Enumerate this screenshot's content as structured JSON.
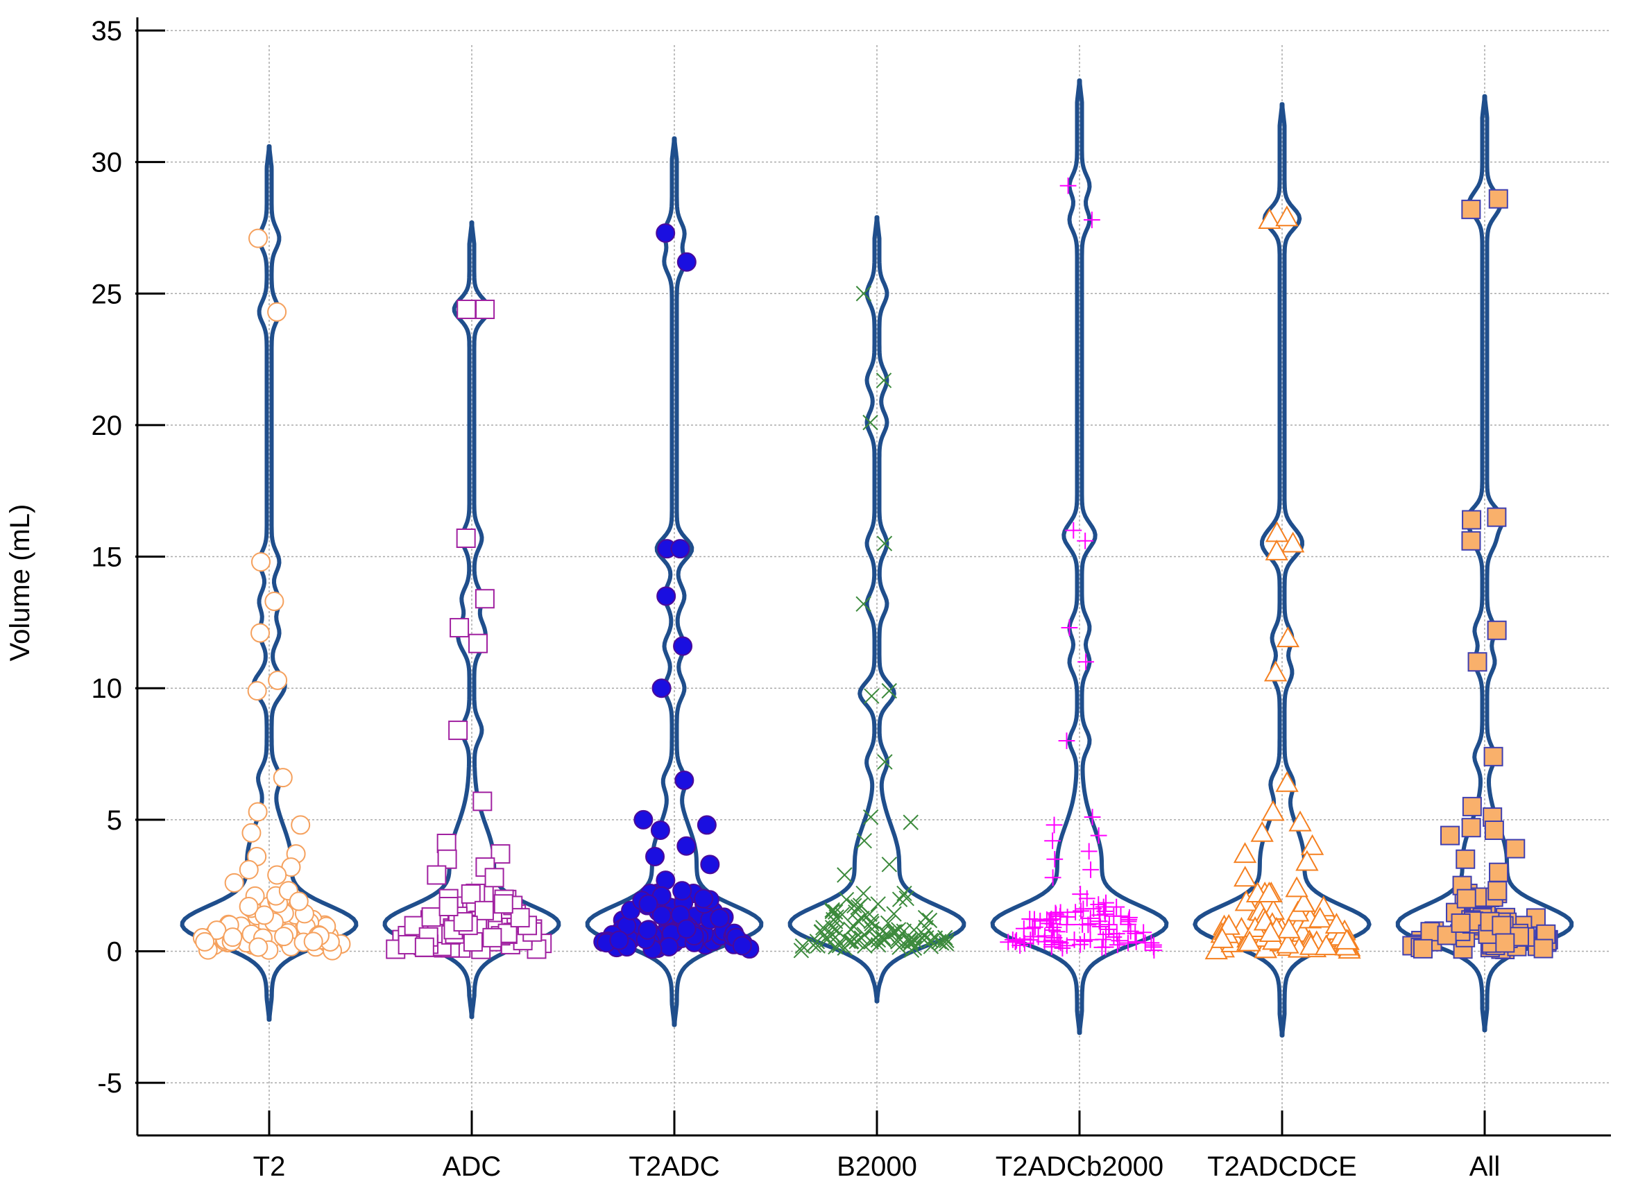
{
  "chart_data": {
    "type": "violin",
    "title": "",
    "xlabel": "",
    "ylabel": "Volume (mL)",
    "ylim": [
      -7,
      35.5
    ],
    "yticks": [
      -5,
      0,
      5,
      10,
      15,
      20,
      25,
      30,
      35
    ],
    "grid": true,
    "colors": {
      "violin": "#1F4E8C",
      "grid": "#AAAAAA",
      "axis": "#000000"
    },
    "categories": [
      "T2",
      "ADC",
      "T2ADC",
      "B2000",
      "T2ADCb2000",
      "T2ADCDCE",
      "All"
    ],
    "series": [
      {
        "name": "T2",
        "marker": "circle",
        "fill": "#FFFFFF",
        "stroke": "#F5A15E",
        "range": [
          -2.6,
          30.6
        ],
        "outliers": [
          27.1,
          24.3,
          14.8,
          13.3,
          12.1,
          10.3,
          9.9,
          6.6,
          5.3,
          4.8,
          4.5,
          3.7,
          3.6,
          3.2,
          3.1,
          2.9,
          2.6,
          2.3,
          2.1,
          1.9,
          1.7
        ]
      },
      {
        "name": "ADC",
        "marker": "square",
        "fill": "#FFFFFF",
        "stroke": "#A020A0",
        "range": [
          -2.5,
          27.7
        ],
        "outliers": [
          24.4,
          24.4,
          15.7,
          13.4,
          12.3,
          11.7,
          8.4,
          5.7,
          4.1,
          3.7,
          3.5,
          3.2,
          2.9,
          2.8,
          2.0,
          1.8,
          1.7
        ]
      },
      {
        "name": "T2ADC",
        "marker": "circle",
        "fill": "#1A0FE0",
        "stroke": "#4A0A9A",
        "range": [
          -2.8,
          30.9
        ],
        "outliers": [
          27.3,
          26.2,
          15.3,
          15.3,
          13.5,
          11.6,
          10.0,
          6.5,
          5.0,
          4.8,
          4.6,
          4.0,
          3.6,
          3.3,
          2.7,
          2.3,
          2.1,
          2.0,
          1.8
        ]
      },
      {
        "name": "B2000",
        "marker": "x",
        "fill": "none",
        "stroke": "#3C8A3C",
        "range": [
          -1.9,
          27.9
        ],
        "outliers": [
          25.0,
          21.7,
          20.1,
          15.5,
          13.2,
          9.9,
          9.7,
          7.2,
          5.1,
          4.9,
          4.2,
          3.3,
          2.9
        ]
      },
      {
        "name": "T2ADCb2000",
        "marker": "plus",
        "fill": "none",
        "stroke": "#FF00FF",
        "range": [
          -3.1,
          33.1
        ],
        "outliers": [
          29.1,
          27.8,
          16.0,
          15.6,
          12.3,
          11.0,
          8.0,
          5.1,
          4.8,
          4.4,
          4.2,
          3.8,
          3.5,
          3.1,
          2.8
        ]
      },
      {
        "name": "T2ADCDCE",
        "marker": "triangle",
        "fill": "#FFFFFF",
        "stroke": "#F58020",
        "range": [
          -3.2,
          32.2
        ],
        "outliers": [
          27.8,
          27.9,
          15.9,
          15.5,
          15.2,
          11.9,
          10.6,
          6.4,
          5.3,
          4.9,
          4.5,
          4.0,
          3.7,
          3.4,
          2.8,
          2.4,
          2.2
        ]
      },
      {
        "name": "All",
        "marker": "square",
        "fill": "#F9B06B",
        "stroke": "#3F3FB0",
        "range": [
          -3.0,
          32.5
        ],
        "outliers": [
          28.2,
          28.6,
          16.4,
          16.5,
          15.6,
          12.2,
          11.0,
          7.4,
          5.5,
          5.1,
          4.7,
          4.6,
          4.4,
          3.9,
          3.5,
          3.0,
          2.5,
          2.3,
          2.0
        ]
      }
    ]
  }
}
